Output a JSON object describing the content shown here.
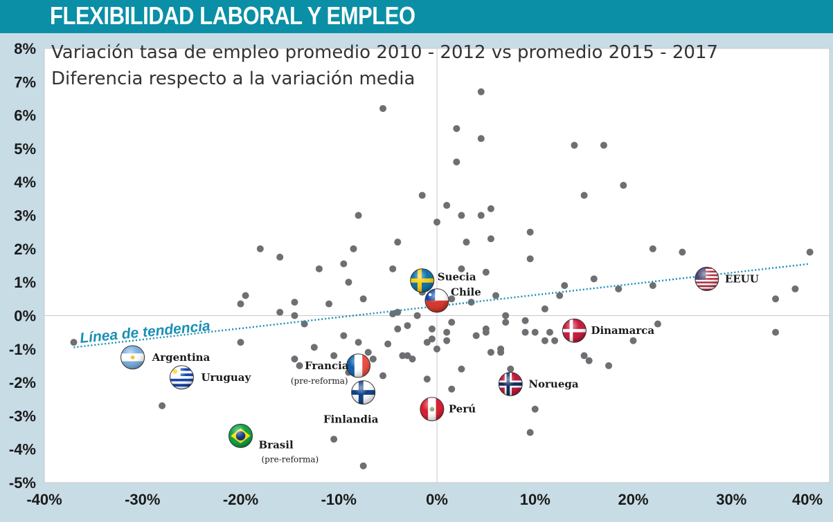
{
  "header": {
    "title": "FLEXIBILIDAD LABORAL Y EMPLEO"
  },
  "chart_data": {
    "type": "scatter",
    "subtitle_line1": "Variación tasa de empleo promedio 2010 - 2012 vs promedio 2015 - 2017",
    "subtitle_line2": "Diferencia respecto a la variación media",
    "xlim": [
      -40,
      40
    ],
    "ylim": [
      -5,
      8
    ],
    "x_ticks": [
      -40,
      -30,
      -20,
      -10,
      0,
      10,
      20,
      30,
      40
    ],
    "x_tick_labels": [
      "-40%",
      "-30%",
      "-20%",
      "-10%",
      "0%",
      "10%",
      "20%",
      "30%",
      "40%"
    ],
    "y_ticks": [
      8,
      7,
      6,
      5,
      4,
      3,
      2,
      1,
      0,
      -1,
      -2,
      -3,
      -4,
      -5
    ],
    "y_tick_labels": [
      "8%",
      "7%",
      "6%",
      "5%",
      "4%",
      "3%",
      "2%",
      "1%",
      "0%",
      "-1%",
      "-2%",
      "-3%",
      "-4%",
      "-5%"
    ],
    "trendline": {
      "label": "Línea de tendencia",
      "x": [
        -37,
        38
      ],
      "y": [
        -0.95,
        1.55
      ]
    },
    "points": [
      [
        -37,
        -0.8
      ],
      [
        -28,
        -2.7
      ],
      [
        -20,
        0.35
      ],
      [
        -19.5,
        0.6
      ],
      [
        -20,
        -0.8
      ],
      [
        -18,
        2.0
      ],
      [
        -16,
        1.75
      ],
      [
        -16,
        0.1
      ],
      [
        -14.5,
        0
      ],
      [
        -14.5,
        0.4
      ],
      [
        -13.5,
        -0.25
      ],
      [
        -14.5,
        -1.3
      ],
      [
        -14,
        -1.5
      ],
      [
        -12.5,
        -0.95
      ],
      [
        -12,
        1.4
      ],
      [
        -11,
        0.35
      ],
      [
        -10.5,
        -1.2
      ],
      [
        -10.5,
        -3.7
      ],
      [
        -9.5,
        1.55
      ],
      [
        -9,
        1.0
      ],
      [
        -9.5,
        -0.6
      ],
      [
        -9,
        -1.7
      ],
      [
        -8.5,
        2.0
      ],
      [
        -8,
        3.0
      ],
      [
        -8,
        -0.8
      ],
      [
        -7.5,
        0.5
      ],
      [
        -7.5,
        -4.5
      ],
      [
        -7,
        -1.1
      ],
      [
        -6.5,
        -1.3
      ],
      [
        -5.5,
        6.2
      ],
      [
        -5.5,
        -1.8
      ],
      [
        -5,
        -0.85
      ],
      [
        -4.5,
        1.4
      ],
      [
        -4.5,
        0.05
      ],
      [
        -4,
        2.2
      ],
      [
        -4,
        0.1
      ],
      [
        -4,
        -0.4
      ],
      [
        -3.5,
        -1.2
      ],
      [
        -3,
        -0.3
      ],
      [
        -3,
        -1.2
      ],
      [
        -2.5,
        -1.3
      ],
      [
        -2,
        0
      ],
      [
        -1.5,
        3.6
      ],
      [
        -1.5,
        0.7
      ],
      [
        -1,
        -0.8
      ],
      [
        -1,
        -1.9
      ],
      [
        -0.5,
        -0.4
      ],
      [
        -0.5,
        -0.7
      ],
      [
        -0.5,
        0.4
      ],
      [
        0,
        -1
      ],
      [
        0,
        2.8
      ],
      [
        1,
        -0.5
      ],
      [
        1,
        -0.75
      ],
      [
        1,
        3.3
      ],
      [
        1.5,
        -0.2
      ],
      [
        1.5,
        -2.2
      ],
      [
        1.5,
        0.5
      ],
      [
        2,
        5.6
      ],
      [
        2,
        4.6
      ],
      [
        2.5,
        -1.6
      ],
      [
        2.5,
        3.0
      ],
      [
        2.5,
        1.4
      ],
      [
        3,
        2.2
      ],
      [
        3.5,
        0.4
      ],
      [
        4,
        -0.6
      ],
      [
        4.5,
        6.7
      ],
      [
        4.5,
        3.0
      ],
      [
        4.5,
        5.3
      ],
      [
        5,
        -0.4
      ],
      [
        5,
        -0.5
      ],
      [
        5,
        1.3
      ],
      [
        5.5,
        -1.1
      ],
      [
        5.5,
        2.3
      ],
      [
        5.5,
        3.2
      ],
      [
        6,
        0.6
      ],
      [
        6.5,
        -1.1
      ],
      [
        6.5,
        -1.0
      ],
      [
        7,
        0
      ],
      [
        7,
        -0.2
      ],
      [
        7.5,
        -1.6
      ],
      [
        9,
        -0.5
      ],
      [
        9,
        -0.15
      ],
      [
        9.5,
        2.5
      ],
      [
        9.5,
        1.7
      ],
      [
        9.5,
        -3.5
      ],
      [
        10,
        -0.5
      ],
      [
        10,
        -2.8
      ],
      [
        11,
        0.2
      ],
      [
        11,
        -0.75
      ],
      [
        11.5,
        -0.5
      ],
      [
        12,
        -0.75
      ],
      [
        12.5,
        0.6
      ],
      [
        13,
        0.9
      ],
      [
        14,
        5.1
      ],
      [
        15,
        3.6
      ],
      [
        15,
        -1.2
      ],
      [
        15.5,
        -1.35
      ],
      [
        16,
        1.1
      ],
      [
        17,
        5.1
      ],
      [
        17.5,
        -1.5
      ],
      [
        18.5,
        0.8
      ],
      [
        19,
        3.9
      ],
      [
        20,
        -0.75
      ],
      [
        22,
        2.0
      ],
      [
        22,
        0.9
      ],
      [
        22.5,
        -0.25
      ],
      [
        25,
        1.9
      ],
      [
        34.5,
        0.5
      ],
      [
        34.5,
        -0.5
      ],
      [
        36.5,
        0.8
      ],
      [
        38,
        1.9
      ]
    ],
    "countries": [
      {
        "name": "Argentina",
        "note": "",
        "x": -31,
        "y": -1.25,
        "flag": "argentina"
      },
      {
        "name": "Uruguay",
        "note": "",
        "x": -26,
        "y": -1.85,
        "flag": "uruguay"
      },
      {
        "name": "Brasil",
        "note": "(pre-reforma)",
        "x": -20,
        "y": -3.6,
        "flag": "brazil"
      },
      {
        "name": "Francia",
        "note": "(pre-reforma)",
        "x": -8,
        "y": -1.5,
        "flag": "france"
      },
      {
        "name": "Finlandia",
        "note": "",
        "x": -7.5,
        "y": -2.3,
        "flag": "finland"
      },
      {
        "name": "Suecia",
        "note": "",
        "x": -1.5,
        "y": 1.05,
        "flag": "sweden"
      },
      {
        "name": "Chile",
        "note": "",
        "x": 0,
        "y": 0.45,
        "flag": "chile"
      },
      {
        "name": "Perú",
        "note": "",
        "x": -0.5,
        "y": -2.8,
        "flag": "peru"
      },
      {
        "name": "Noruega",
        "note": "",
        "x": 7.5,
        "y": -2.05,
        "flag": "norway"
      },
      {
        "name": "Dinamarca",
        "note": "",
        "x": 14,
        "y": -0.45,
        "flag": "denmark"
      },
      {
        "name": "EEUU",
        "note": "",
        "x": 27.5,
        "y": 1.1,
        "flag": "usa"
      }
    ],
    "grid": false,
    "colors": {
      "points": "#6e6f72",
      "trendline": "#1a8fb5",
      "header": "#0a8fa6",
      "axis_band": "#c8dce6",
      "plot_bg": "#ffffff"
    }
  }
}
